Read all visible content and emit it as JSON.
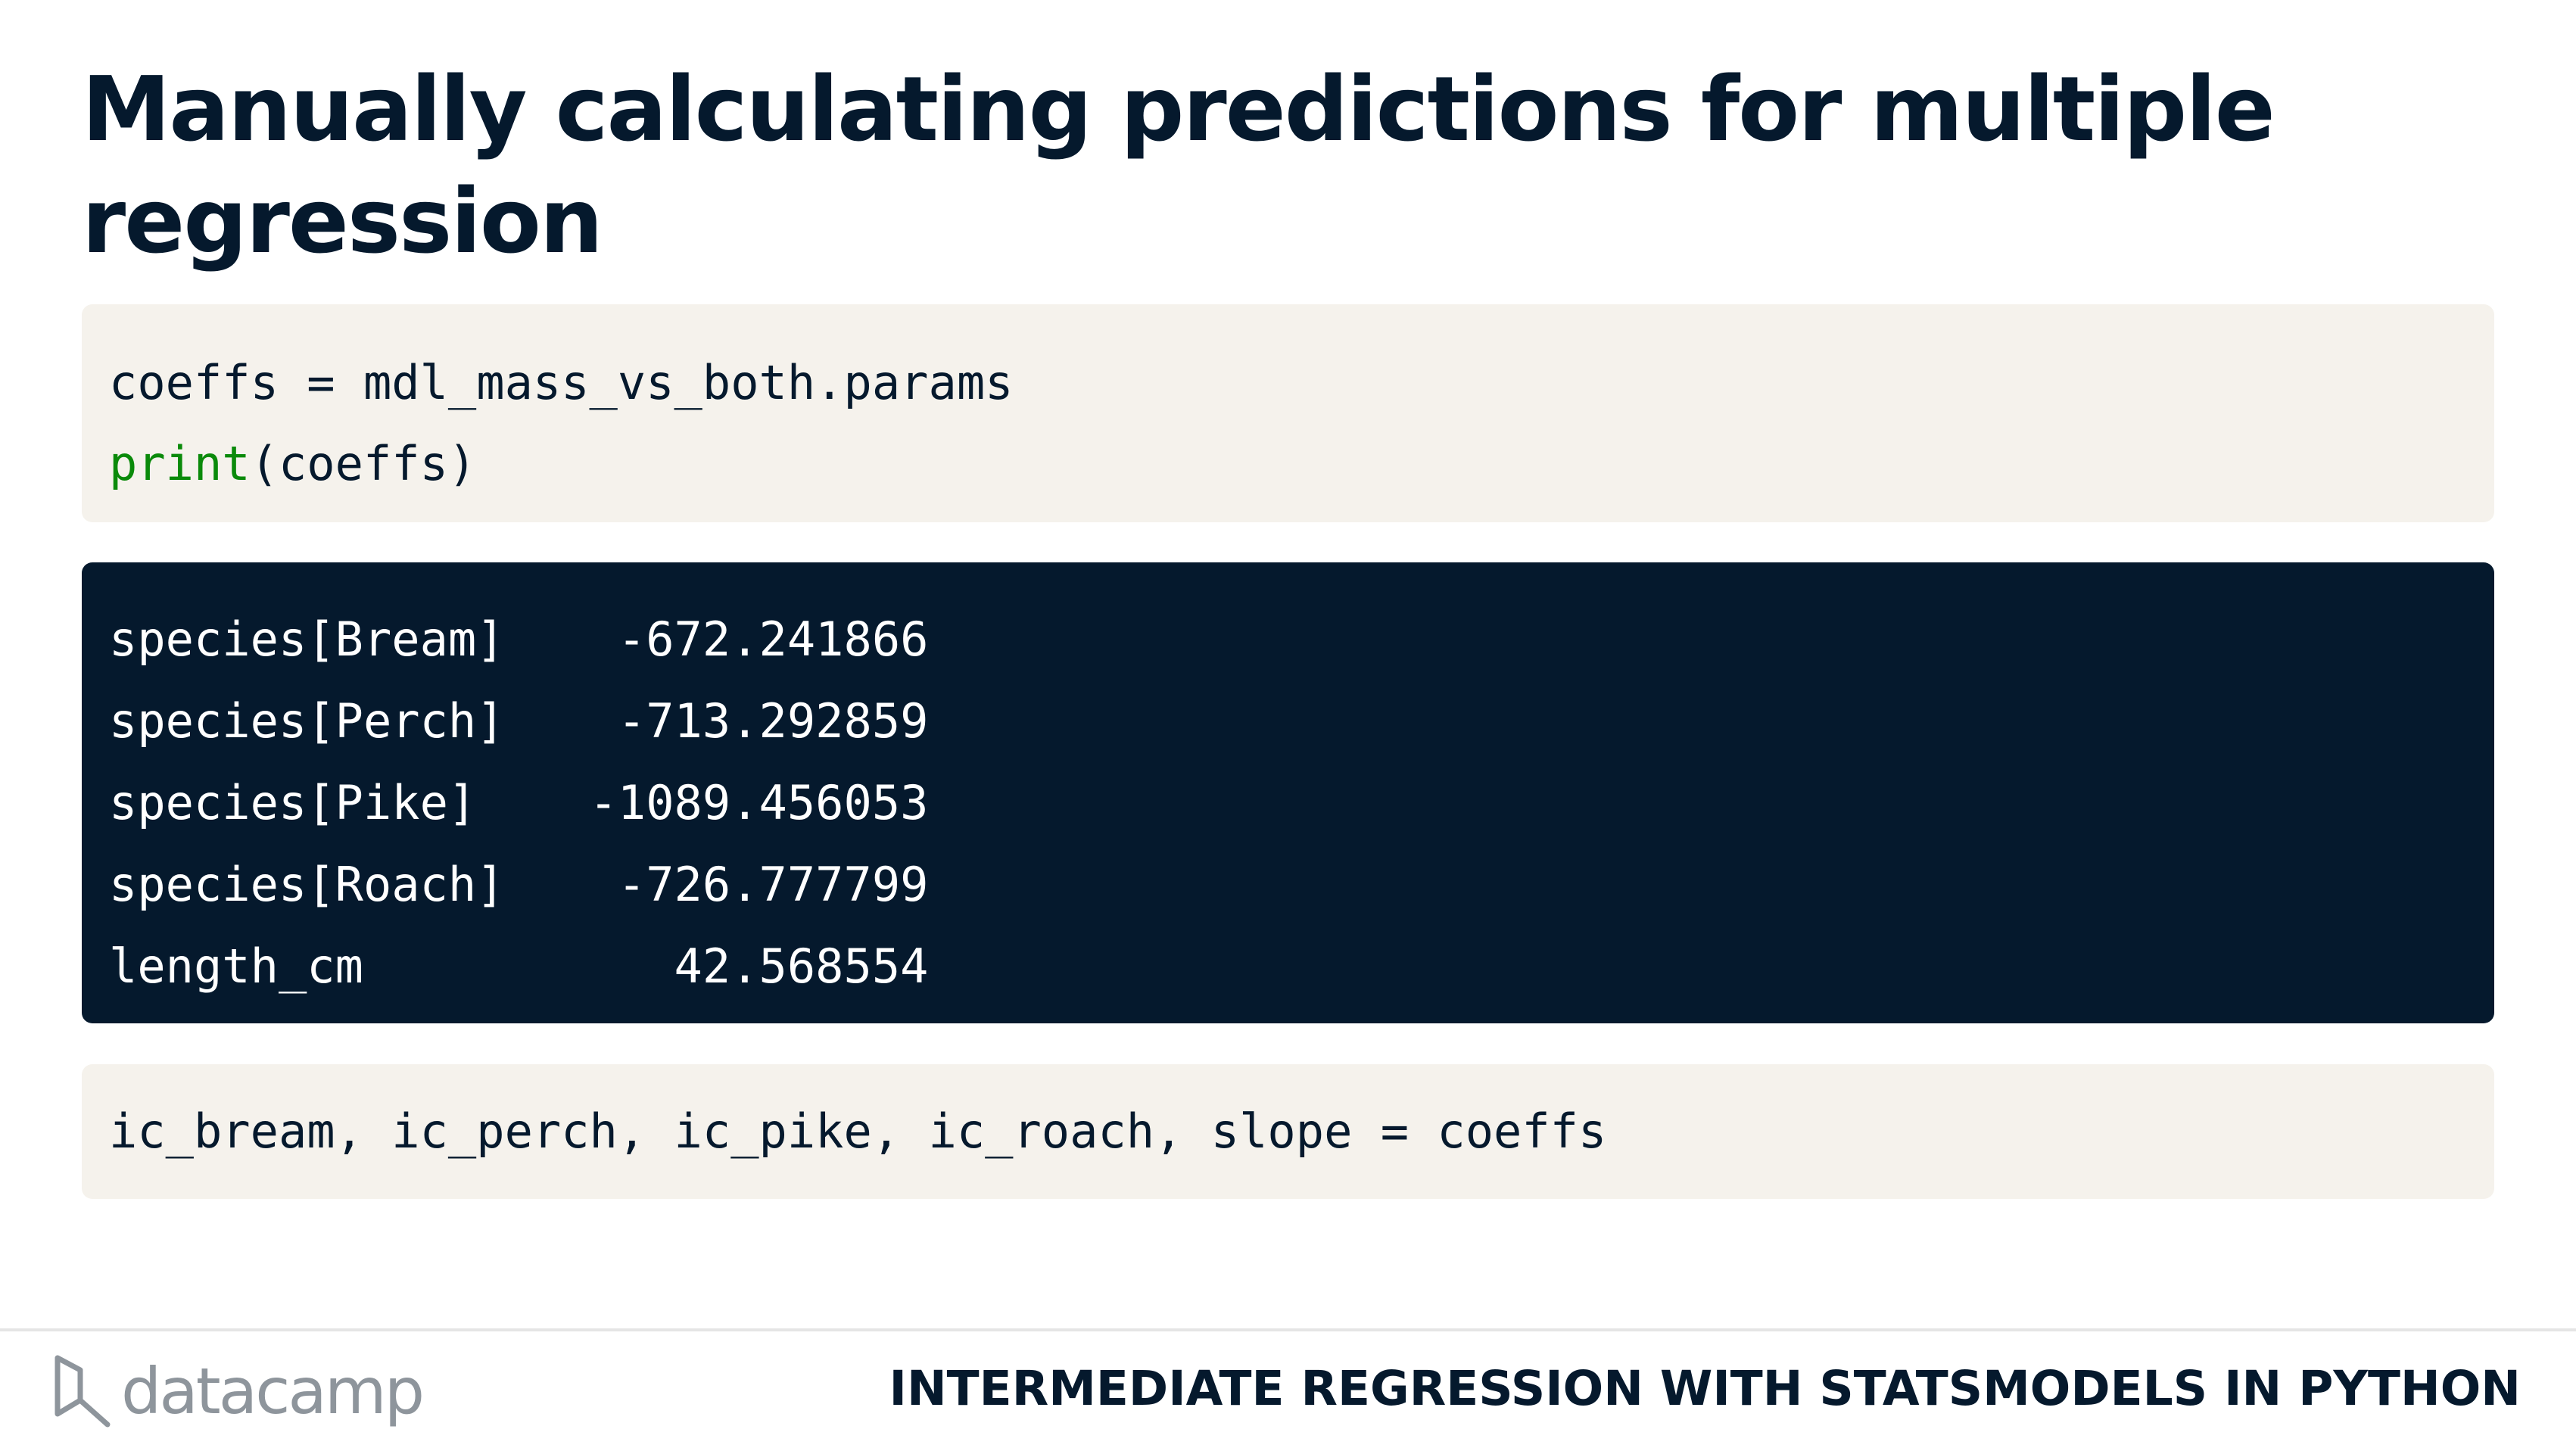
{
  "slide": {
    "title": "Manually calculating predictions for multiple regression"
  },
  "code_block_1": {
    "line_1": "coeffs = mdl_mass_vs_both.params",
    "line_2_keyword": "print",
    "line_2_rest": "(coeffs)"
  },
  "output_block": {
    "lines": [
      "species[Bream]    -672.241866",
      "species[Perch]    -713.292859",
      "species[Pike]    -1089.456053",
      "species[Roach]    -726.777799",
      "length_cm           42.568554"
    ]
  },
  "code_block_2": {
    "line_1": "ic_bream, ic_perch, ic_pike, ic_roach, slope = coeffs"
  },
  "footer": {
    "logo_text": "datacamp",
    "logo_icon": "datacamp-logo-icon",
    "course_title": "INTERMEDIATE REGRESSION WITH STATSMODELS IN PYTHON"
  },
  "colors": {
    "navy": "#05192d",
    "code_bg": "#f5f2ec",
    "print_green": "#0a8a0a",
    "logo_grey": "#8e959c"
  }
}
